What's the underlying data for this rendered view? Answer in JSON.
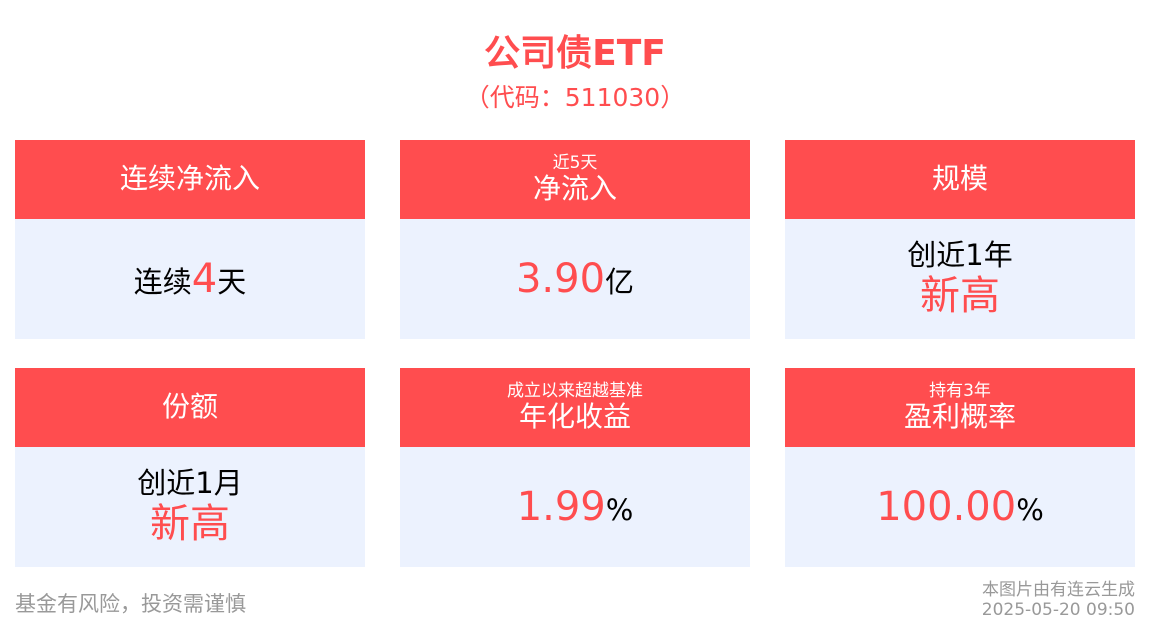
{
  "header": {
    "title": "公司债ETF",
    "code": "（代码：511030）"
  },
  "cards": [
    {
      "sub": "",
      "main": "连续净流入",
      "pre": "连续",
      "value": "4",
      "post": "天"
    },
    {
      "sub": "近5天",
      "main": "净流入",
      "pre": "",
      "value": "3.90",
      "post": "亿"
    },
    {
      "sub": "",
      "main": "规模",
      "line1": "创近1年",
      "line2": "新高"
    },
    {
      "sub": "",
      "main": "份额",
      "line1": "创近1月",
      "line2": "新高"
    },
    {
      "sub": "成立以来超越基准",
      "main": "年化收益",
      "pre": "",
      "value": "1.99",
      "post": "%"
    },
    {
      "sub": "持有3年",
      "main": "盈利概率",
      "pre": "",
      "value": "100.00",
      "post": "%"
    }
  ],
  "footer": {
    "disclaimer": "基金有风险，投资需谨慎",
    "credit": "本图片由有连云生成",
    "timestamp": "2025-05-20 09:50"
  },
  "colors": {
    "accent": "#ff4d4f",
    "card_bg": "#ecf2fe"
  }
}
